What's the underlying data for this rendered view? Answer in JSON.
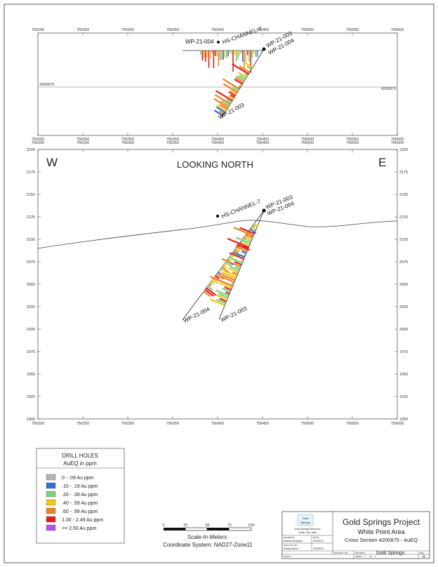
{
  "plan": {
    "x_ticks": [
      756200,
      756250,
      756300,
      756350,
      756400,
      756450,
      756500,
      756550,
      756600
    ],
    "northing_label": "4200875",
    "holes": {
      "wp004": "WP-21-004",
      "channel": "HS-CHANNEL-7",
      "wp003a": "WP-21-003",
      "wp004b": "WP-21-004",
      "wp003b": "WP-21-003"
    }
  },
  "section": {
    "x_ticks": [
      756200,
      756250,
      756300,
      756350,
      756400,
      756450,
      756500,
      756550,
      756600
    ],
    "y_ticks": [
      2200,
      2175,
      2150,
      2125,
      2100,
      2075,
      2050,
      2025,
      2000,
      1975,
      1950,
      1925,
      1900
    ],
    "west_label": "W",
    "east_label": "E",
    "title": "LOOKING NORTH",
    "holes": {
      "channel": "HS-CHANNEL-7",
      "wp003": "WP-21-003",
      "wp004": "WP-21-004",
      "wp004_end": "WP-21-004",
      "wp003_end": "WP-21-003"
    }
  },
  "legend": {
    "title": "DRILL HOLES",
    "subtitle": "AuEQ in ppm",
    "items": [
      {
        "label": "0 - .09 Au ppm",
        "color": "#b3b3b3"
      },
      {
        "label": ".10 - .19 Au ppm",
        "color": "#2f6fd8"
      },
      {
        "label": ".20 - .39 Au ppm",
        "color": "#7ad17a"
      },
      {
        "label": ".40 - .59 Au ppm",
        "color": "#f5c518"
      },
      {
        "label": ".60 - .99 Au ppm",
        "color": "#f07f1e"
      },
      {
        "label": "1.00 - 2.49 Au ppm",
        "color": "#e01f1f"
      },
      {
        "label": ">= 2.50 Au ppm",
        "color": "#b44fe8"
      }
    ]
  },
  "scale": {
    "ticks": [
      "0",
      "25",
      "50",
      "75",
      "100"
    ],
    "label": "Scale-In-Meters",
    "coords": "Coordinate System: NAD27-Zone11"
  },
  "title_block": {
    "logo_line1": "Gold",
    "logo_line2": "Springs",
    "company_line1": "Gold Springs Resource",
    "company_line2": "Cedar City, Utah",
    "drawn_by_label": "DRAWN BY:",
    "drawn_by": "Manuel Montoya",
    "date_label": "DATE:",
    "date1": "3/22/2022",
    "geology_label": "GEOLOGY BY:",
    "geology_by": "Randy Moore",
    "date2": "3/22/2022",
    "project": "Gold Springs Project",
    "area": "White Point Area",
    "section": "Cross Section 4200875 - AuEQ",
    "project_no_label": "PROJECT NO:",
    "project_label": "PROJECT:",
    "project_name": "Gold Springs",
    "scale_label": "SCALE:",
    "sheet_label": "SHEET",
    "sheet_no": "1",
    "of_label": "OF",
    "sheet_total": "1",
    "rev_label": "REV",
    "rev": "A"
  }
}
